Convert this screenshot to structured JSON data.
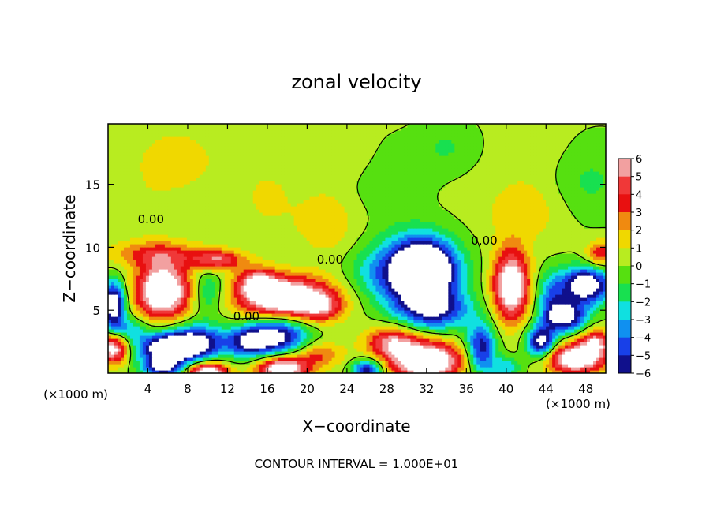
{
  "chart_data": {
    "type": "heatmap",
    "title": "zonal velocity",
    "xlabel": "X−coordinate",
    "ylabel": "Z−coordinate",
    "x_unit_label": "(×1000 m)",
    "x_unit_label_right": "(×1000 m)",
    "footer": "CONTOUR INTERVAL = 1.000E+01",
    "xlim": [
      0,
      50
    ],
    "ylim": [
      0,
      19.8
    ],
    "x_ticks": [
      4,
      8,
      12,
      16,
      20,
      24,
      28,
      32,
      36,
      40,
      44,
      48
    ],
    "y_ticks": [
      5,
      10,
      15
    ],
    "contour_labels": [
      {
        "text": "0.00",
        "x": 4.3,
        "y": 11.9
      },
      {
        "text": "0.00",
        "x": 22.3,
        "y": 8.7
      },
      {
        "text": "0.00",
        "x": 13.9,
        "y": 4.2
      },
      {
        "text": "0.00",
        "x": 37.8,
        "y": 10.2
      }
    ],
    "colorbar": {
      "levels": [
        6,
        5,
        4,
        3,
        2,
        1,
        0,
        -1,
        -2,
        -3,
        -4,
        -5,
        -6
      ],
      "colors": [
        "#f2a0a0",
        "#f03838",
        "#e81010",
        "#f08a10",
        "#f0d800",
        "#b8ec20",
        "#56e010",
        "#18e050",
        "#10e0e0",
        "#1090f0",
        "#1840e8",
        "#10108c",
        "#7010a8"
      ]
    },
    "blobs": [
      {
        "x": 25,
        "y": 10,
        "v": 0.3,
        "rx": 30,
        "ry": 20
      },
      {
        "x": 4,
        "y": 13.5,
        "v": 0.5,
        "rx": 3,
        "ry": 4
      },
      {
        "x": 7,
        "y": 17,
        "v": 1.4,
        "rx": 4,
        "ry": 2.5
      },
      {
        "x": 16,
        "y": 14,
        "v": 0.9,
        "rx": 3,
        "ry": 3
      },
      {
        "x": 22,
        "y": 12,
        "v": 1.5,
        "rx": 3,
        "ry": 2.5
      },
      {
        "x": 24,
        "y": 17,
        "v": 0.8,
        "rx": 4,
        "ry": 2
      },
      {
        "x": 28,
        "y": 15.5,
        "v": -1.2,
        "rx": 4,
        "ry": 3
      },
      {
        "x": 34,
        "y": 18,
        "v": -1.3,
        "rx": 3,
        "ry": 2
      },
      {
        "x": 48,
        "y": 15.5,
        "v": -1.6,
        "rx": 4,
        "ry": 3
      },
      {
        "x": 42,
        "y": 13,
        "v": 1.5,
        "rx": 4,
        "ry": 2.5
      },
      {
        "x": 45,
        "y": 17,
        "v": 0.6,
        "rx": 5,
        "ry": 2.5
      },
      {
        "x": 26,
        "y": 8,
        "v": -1.2,
        "rx": 2.5,
        "ry": 2
      },
      {
        "x": 31,
        "y": 8,
        "v": -9,
        "rx": 4,
        "ry": 2.8
      },
      {
        "x": 32,
        "y": 8.3,
        "v": -5,
        "rx": 2.5,
        "ry": 2
      },
      {
        "x": 33,
        "y": 5,
        "v": -5,
        "rx": 3.5,
        "ry": 1.5
      },
      {
        "x": 5.5,
        "y": 6.6,
        "v": 9,
        "rx": 2.6,
        "ry": 2.2
      },
      {
        "x": 5,
        "y": 9.5,
        "v": 3,
        "rx": 5,
        "ry": 1
      },
      {
        "x": 11,
        "y": 9,
        "v": 4.5,
        "rx": 2.5,
        "ry": 0.8
      },
      {
        "x": 18,
        "y": 6,
        "v": 9,
        "rx": 4.5,
        "ry": 1.6
      },
      {
        "x": 15,
        "y": 7.2,
        "v": 5,
        "rx": 2,
        "ry": 1.2
      },
      {
        "x": 10,
        "y": 6.5,
        "v": -2.5,
        "rx": 1.5,
        "ry": 1.8
      },
      {
        "x": 21.5,
        "y": 5.2,
        "v": 3,
        "rx": 2,
        "ry": 1
      },
      {
        "x": 40.5,
        "y": 7,
        "v": 8,
        "rx": 1.8,
        "ry": 2.8
      },
      {
        "x": 44.5,
        "y": 6,
        "v": -3.5,
        "rx": 1.5,
        "ry": 2
      },
      {
        "x": 48,
        "y": 7,
        "v": -8,
        "rx": 2.5,
        "ry": 1.5
      },
      {
        "x": 46,
        "y": 4.5,
        "v": -7,
        "rx": 2,
        "ry": 1.2
      },
      {
        "x": 49.5,
        "y": 9.5,
        "v": 4,
        "rx": 1.5,
        "ry": 1
      },
      {
        "x": 0.5,
        "y": 5.5,
        "v": -8,
        "rx": 1.2,
        "ry": 1.8
      },
      {
        "x": 2,
        "y": 3.5,
        "v": -3,
        "rx": 2,
        "ry": 1
      },
      {
        "x": 0.5,
        "y": 2,
        "v": 7,
        "rx": 1.5,
        "ry": 1.2
      },
      {
        "x": 6,
        "y": 2,
        "v": -8,
        "rx": 3,
        "ry": 1.2
      },
      {
        "x": 9,
        "y": 2.5,
        "v": -6,
        "rx": 3,
        "ry": 1.4
      },
      {
        "x": 5.5,
        "y": 0.5,
        "v": -6,
        "rx": 2,
        "ry": 0.8
      },
      {
        "x": 10,
        "y": 0.2,
        "v": 8,
        "rx": 2,
        "ry": 0.7
      },
      {
        "x": 14,
        "y": 2.5,
        "v": -5,
        "rx": 2,
        "ry": 1.2
      },
      {
        "x": 17,
        "y": 3,
        "v": -7,
        "rx": 3,
        "ry": 1.5
      },
      {
        "x": 17.5,
        "y": 0.4,
        "v": 8,
        "rx": 2.5,
        "ry": 0.9
      },
      {
        "x": 21,
        "y": 1.5,
        "v": 3,
        "rx": 2.5,
        "ry": 1
      },
      {
        "x": 26,
        "y": 0.3,
        "v": -6,
        "rx": 1.5,
        "ry": 0.8
      },
      {
        "x": 28.5,
        "y": 2.5,
        "v": 5,
        "rx": 2.5,
        "ry": 1.2
      },
      {
        "x": 32,
        "y": 1,
        "v": 9,
        "rx": 3.5,
        "ry": 1.5
      },
      {
        "x": 37.5,
        "y": 2,
        "v": -6,
        "rx": 1.5,
        "ry": 2
      },
      {
        "x": 40,
        "y": 0.5,
        "v": -3,
        "rx": 1.5,
        "ry": 0.8
      },
      {
        "x": 43.5,
        "y": 2.5,
        "v": -7,
        "rx": 1.5,
        "ry": 1.3
      },
      {
        "x": 47,
        "y": 1.2,
        "v": 8,
        "rx": 3,
        "ry": 1.2
      },
      {
        "x": 49,
        "y": 2.5,
        "v": 5,
        "rx": 1.5,
        "ry": 1
      }
    ]
  }
}
